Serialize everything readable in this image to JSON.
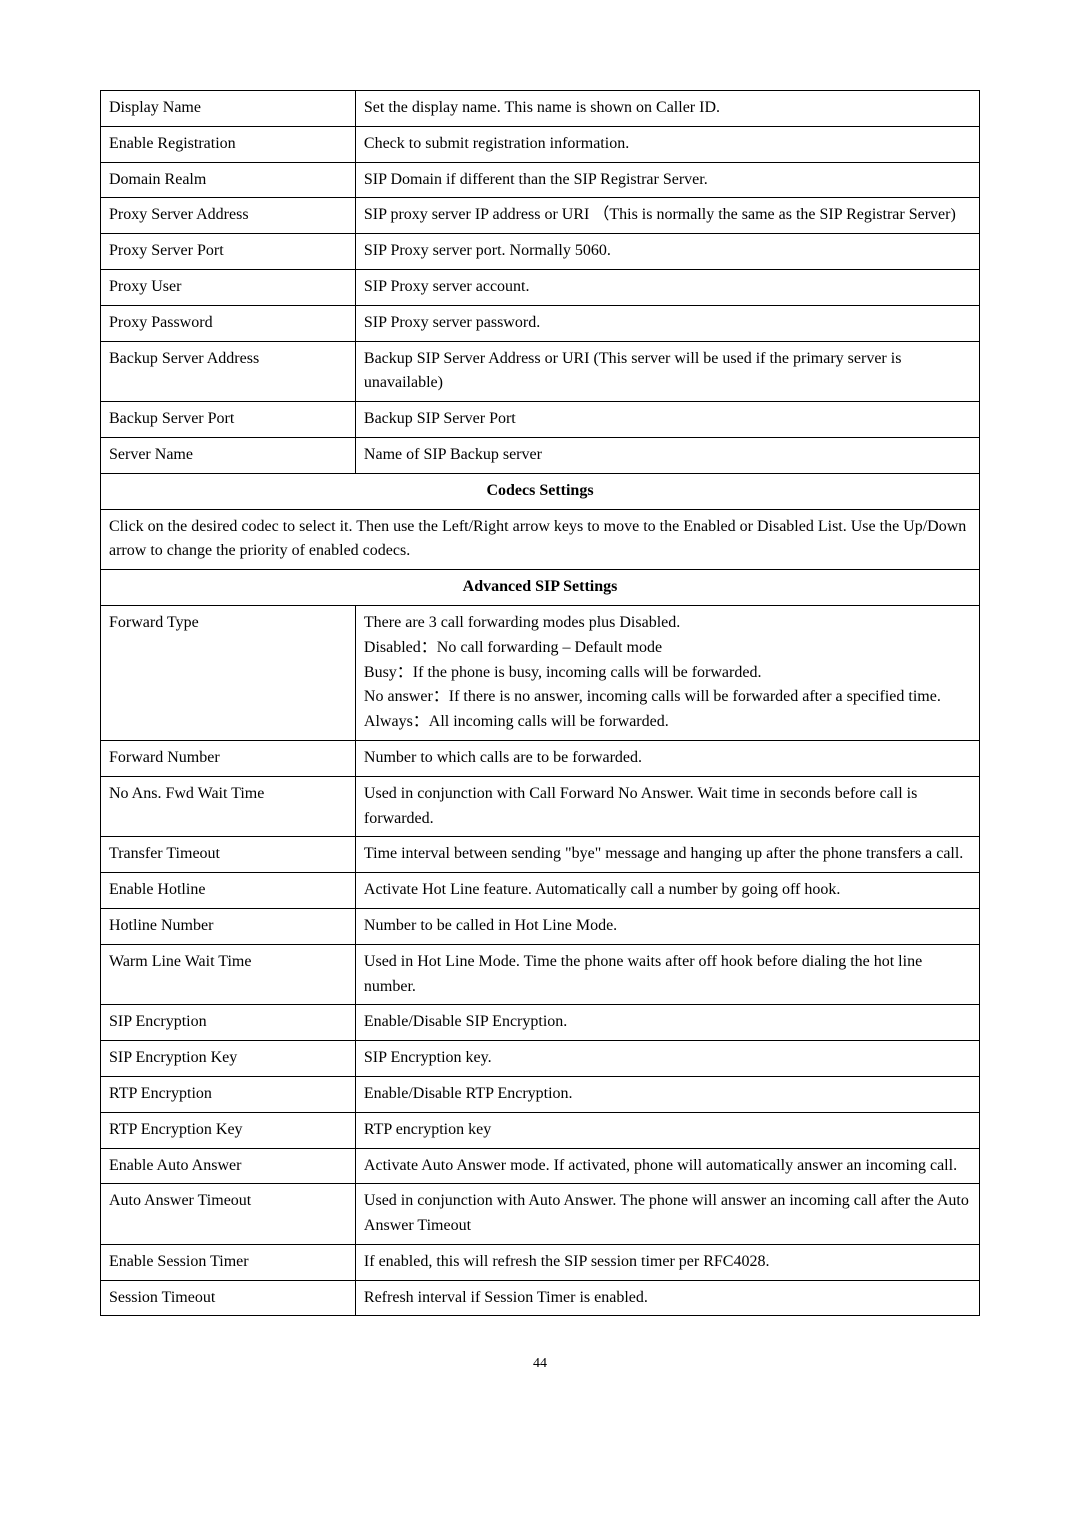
{
  "table1": {
    "rows": [
      {
        "left": "Display Name",
        "right": "Set the display name.    This name is shown on Caller ID."
      },
      {
        "left": "Enable Registration",
        "right": "Check to submit registration information."
      },
      {
        "left": "Domain Realm",
        "right": "SIP Domain if different than the SIP Registrar Server."
      },
      {
        "left": "Proxy Server Address",
        "right": "SIP proxy server IP address or URI （This is normally the same as the SIP Registrar Server)"
      },
      {
        "left": "Proxy Server Port",
        "right": "SIP Proxy server port. Normally 5060."
      },
      {
        "left": "Proxy User",
        "right": "SIP Proxy server account."
      },
      {
        "left": "Proxy Password",
        "right": "SIP Proxy server password."
      },
      {
        "left": "Backup Server Address",
        "right": "Backup SIP Server Address or URI (This server will be used if the primary server is unavailable)"
      },
      {
        "left": "Backup Server Port",
        "right": "Backup SIP Server Port"
      },
      {
        "left": "Server Name",
        "right": "Name of SIP Backup server"
      }
    ]
  },
  "codecs_header": "Codecs Settings",
  "codecs_text": "Click on the desired codec to select it.    Then use the Left/Right arrow keys to move to the Enabled or Disabled List.    Use the Up/Down arrow to change the priority of enabled codecs.",
  "advanced_header": "Advanced SIP Settings",
  "table2": {
    "rows": [
      {
        "left": "Forward Type",
        "right": "There are 3 call forwarding modes plus Disabled.\nDisabled：No call forwarding – Default mode\nBusy：If the phone is busy, incoming calls will be forwarded.\nNo answer：If there is no answer, incoming calls will be forwarded after a specified time.\nAlways：All incoming calls will be forwarded."
      },
      {
        "left": "Forward Number",
        "right": "Number to which calls are to be forwarded."
      },
      {
        "left": "No Ans. Fwd Wait Time",
        "right": "Used in conjunction with Call Forward No Answer.    Wait time in seconds before call is forwarded."
      },
      {
        "left": "Transfer Timeout",
        "right": "Time interval between sending \"bye\" message and hanging up after the phone transfers a call."
      },
      {
        "left": "Enable Hotline",
        "right": "Activate Hot Line feature.    Automatically call a number by going off hook."
      },
      {
        "left": "Hotline Number",
        "right": "Number to be called in Hot Line Mode."
      },
      {
        "left": "Warm Line Wait Time",
        "right": "Used in Hot Line Mode. Time the phone waits after off hook before dialing the hot line number."
      },
      {
        "left": "SIP Encryption",
        "right": "Enable/Disable SIP Encryption."
      },
      {
        "left": "SIP Encryption Key",
        "right": "SIP Encryption key."
      },
      {
        "left": "RTP Encryption",
        "right": "Enable/Disable RTP Encryption."
      },
      {
        "left": "RTP Encryption Key",
        "right": "RTP encryption key"
      },
      {
        "left": "Enable Auto Answer",
        "right": "Activate Auto Answer mode.    If activated, phone will automatically answer an incoming call."
      },
      {
        "left": "Auto Answer Timeout",
        "right": "Used in conjunction with Auto Answer.    The phone will answer an incoming call after the Auto Answer Timeout"
      },
      {
        "left": "Enable Session Timer",
        "right": "If enabled, this will refresh the SIP session timer per RFC4028."
      },
      {
        "left": "Session Timeout",
        "right": "Refresh interval if Session Timer is enabled."
      }
    ]
  },
  "page_number": "44"
}
